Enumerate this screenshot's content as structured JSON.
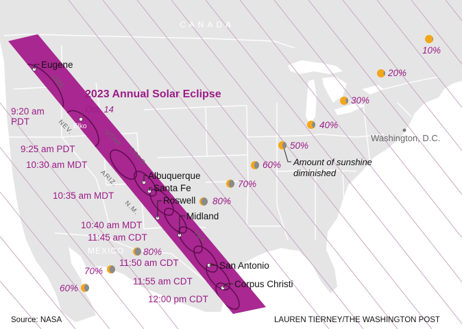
{
  "title": "2023 Annual Solar Eclipse",
  "subtitle": "Oct. 14",
  "country_labels": {
    "canada": "CANADA",
    "mexico": "MEXICO"
  },
  "state_labels": {
    "ore": "ORE.",
    "nev": "NEV.",
    "utah": "UTAH",
    "colo": "COLO.",
    "ariz": "ARIZ.",
    "nm": "N.M.",
    "tex": "TEX"
  },
  "cities": {
    "eugene": "Eugene",
    "elko": "Elko",
    "albuquerque": "Albuquerque",
    "santa_fe": "Santa Fe",
    "roswell": "Roswell",
    "midland": "Midland",
    "san_antonio": "San Antonio",
    "corpus_christi": "Corpus Christi",
    "washington": "Washington, D.C."
  },
  "times": {
    "t920_a": "9:20 am",
    "t920_b": "PDT",
    "t925": "9:25 am PDT",
    "t1030": "10:30 am MDT",
    "t1035": "10:35 am MDT",
    "t1040": "10:40 am MDT",
    "t1145": "11:45 am CDT",
    "t1150": "11:50 am CDT",
    "t1155": "11:55 am CDT",
    "t1200": "12:00 pm CDT"
  },
  "sunshine_note": {
    "line1": "Amount of sunshine",
    "line2": "diminished"
  },
  "sunshine_reduction": [
    {
      "pct": "10%",
      "fraction_dimmed": 0.1
    },
    {
      "pct": "20%",
      "fraction_dimmed": 0.2
    },
    {
      "pct": "30%",
      "fraction_dimmed": 0.3
    },
    {
      "pct": "40%",
      "fraction_dimmed": 0.4
    },
    {
      "pct": "50%",
      "fraction_dimmed": 0.5
    },
    {
      "pct": "60%",
      "fraction_dimmed": 0.6
    },
    {
      "pct": "70%",
      "fraction_dimmed": 0.7
    },
    {
      "pct": "80%",
      "fraction_dimmed": 0.8
    },
    {
      "pct": "80%",
      "fraction_dimmed": 0.8
    },
    {
      "pct": "70%",
      "fraction_dimmed": 0.7
    },
    {
      "pct": "60%",
      "fraction_dimmed": 0.6
    }
  ],
  "source": "Source: NASA",
  "credit": "LAUREN TIERNEY/THE WASHINGTON POST",
  "colors": {
    "path": "#a51f8d",
    "path_dark": "#6e0f5d",
    "land": "#e6e6e6",
    "water": "#ffffff",
    "sun": "#f2a71b",
    "moon": "#8a8a8a",
    "label_magenta": "#9b1c87"
  }
}
